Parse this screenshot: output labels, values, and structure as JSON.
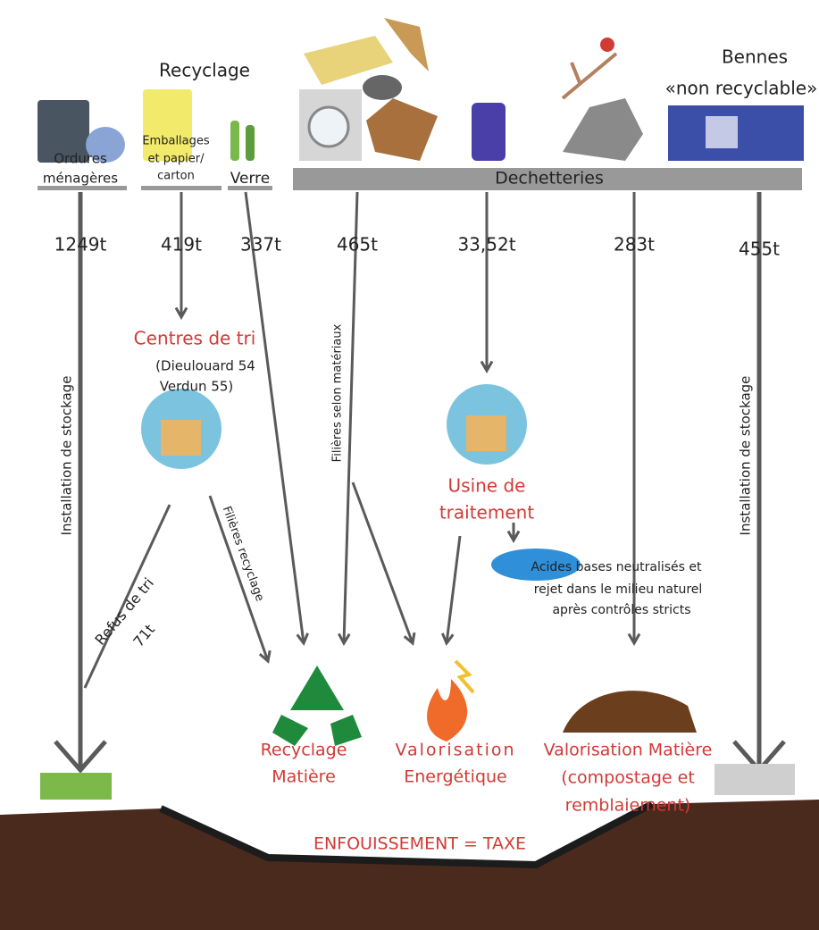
{
  "header": {
    "recyclage": "Recyclage",
    "bennes": [
      "Bennes",
      "«non recyclable»"
    ],
    "dechetteries": "Dechetteries"
  },
  "sources": {
    "ordures": [
      "Ordures",
      "ménagères"
    ],
    "emballages": [
      "Emballages",
      "et papier/",
      "carton"
    ],
    "verre": "Verre"
  },
  "quantities": [
    "1249t",
    "419t",
    "337t",
    "465t",
    "33,52t",
    "283t",
    "455t"
  ],
  "flows": {
    "stockage_left": "Installation de stockage",
    "stockage_right": "Installation de stockage",
    "filieres_materiaux": "Filières selon matériaux",
    "filieres_recyclage": "Filières recyclage",
    "refus": [
      "Refus de tri",
      "71t"
    ]
  },
  "centres_de_tri": {
    "title": "Centres de tri",
    "lines": [
      "(Dieulouard 54",
      "Verdun 55)"
    ]
  },
  "usine": [
    "Usine de",
    "traitement"
  ],
  "acides": [
    "Acides bases neutralisés et",
    "rejet dans le milieu naturel",
    "après contrôles stricts"
  ],
  "outcomes": {
    "recyclage": [
      "Recyclage",
      "Matière"
    ],
    "energetique": [
      "Valorisation",
      "Energétique"
    ],
    "matiere": [
      "Valorisation Matière",
      "(compostage et",
      "remblaiement)"
    ]
  },
  "enfouissement": "ENFOUISSEMENT = TAXE"
}
